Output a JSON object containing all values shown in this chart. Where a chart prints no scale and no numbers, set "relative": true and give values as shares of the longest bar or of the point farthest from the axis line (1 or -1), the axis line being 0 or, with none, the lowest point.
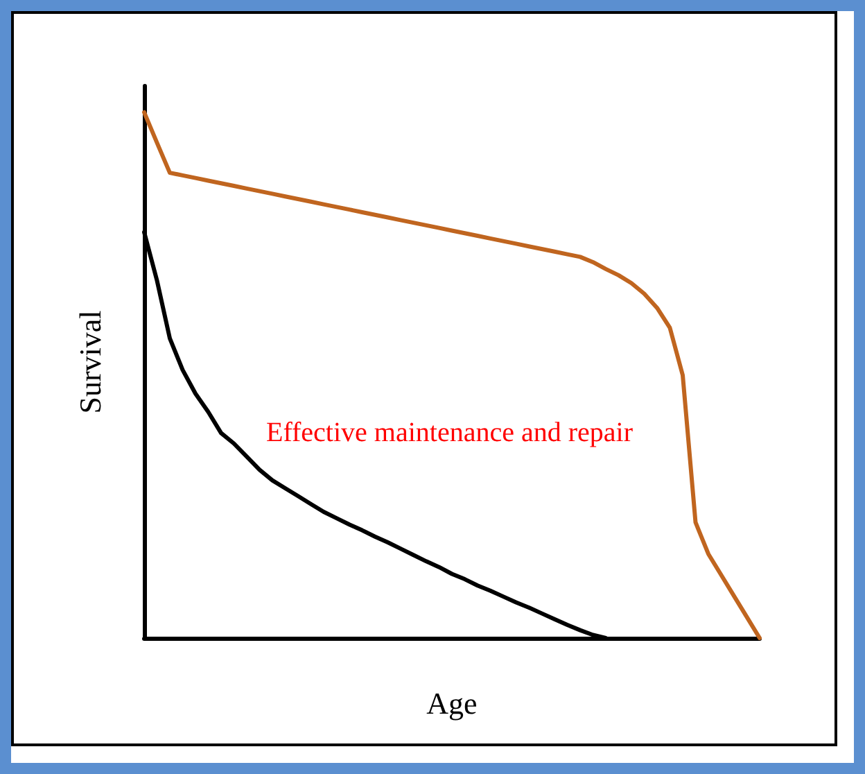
{
  "chart_data": {
    "type": "line",
    "relative": true,
    "xlabel": "Age",
    "ylabel": "Survival",
    "annotations": [
      "Effective maintenance and repair"
    ],
    "categories": [
      null,
      null,
      null,
      null,
      null,
      null,
      null,
      null,
      null,
      null,
      null,
      null,
      null,
      null,
      null,
      null,
      null,
      null,
      null,
      null,
      null,
      null,
      null,
      null,
      null,
      null,
      null,
      null,
      null,
      null,
      null,
      null,
      null,
      null,
      null,
      null,
      null,
      null,
      null,
      null,
      null,
      null,
      null,
      null,
      null,
      null,
      null,
      null,
      null
    ],
    "series": [
      {
        "color": "#c0651f",
        "values": [
          1.0,
          0.942,
          0.885,
          0.88,
          0.875,
          0.87,
          0.865,
          0.86,
          0.855,
          0.85,
          0.845,
          0.84,
          0.835,
          0.83,
          0.825,
          0.82,
          0.815,
          0.81,
          0.805,
          0.8,
          0.795,
          0.79,
          0.785,
          0.78,
          0.775,
          0.77,
          0.765,
          0.76,
          0.755,
          0.75,
          0.745,
          0.74,
          0.735,
          0.73,
          0.725,
          0.715,
          0.702,
          0.69,
          0.675,
          0.655,
          0.628,
          0.59,
          0.5,
          0.22,
          0.16,
          0.12,
          0.08,
          0.04,
          0.0
        ]
      },
      {
        "color": "#000000",
        "values": [
          0.772,
          0.68,
          0.57,
          0.51,
          0.465,
          0.43,
          0.39,
          0.37,
          0.345,
          0.32,
          0.3,
          0.285,
          0.27,
          0.255,
          0.24,
          0.228,
          0.216,
          0.205,
          0.193,
          0.182,
          0.17,
          0.158,
          0.146,
          0.135,
          0.122,
          0.112,
          0.1,
          0.09,
          0.079,
          0.068,
          0.058,
          0.047,
          0.036,
          0.025,
          0.015,
          0.006,
          0.0,
          null,
          null,
          null,
          null,
          null,
          null,
          null,
          null,
          null,
          null,
          null,
          null
        ]
      }
    ],
    "grid": false,
    "line_style": "solid"
  }
}
